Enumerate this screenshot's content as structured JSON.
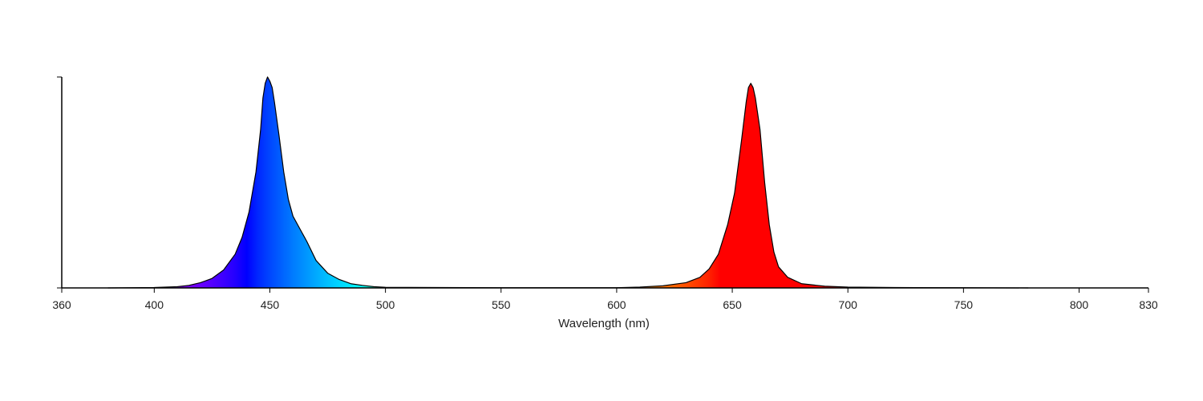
{
  "chart_data": {
    "type": "area",
    "title": "",
    "xlabel": "Wavelength (nm)",
    "ylabel": "",
    "xlim": [
      360,
      830
    ],
    "ylim": [
      0,
      1
    ],
    "grid": false,
    "legend": "none",
    "x_ticks": [
      360,
      400,
      450,
      500,
      550,
      600,
      650,
      700,
      750,
      800,
      830
    ],
    "y_ticks": [
      0,
      1
    ],
    "series": [
      {
        "color_mode": "spectral",
        "points": [
          [
            380,
            0.0
          ],
          [
            400,
            0.002
          ],
          [
            410,
            0.006
          ],
          [
            415,
            0.012
          ],
          [
            420,
            0.025
          ],
          [
            425,
            0.045
          ],
          [
            430,
            0.085
          ],
          [
            435,
            0.16
          ],
          [
            438,
            0.24
          ],
          [
            441,
            0.36
          ],
          [
            444,
            0.55
          ],
          [
            446,
            0.75
          ],
          [
            447,
            0.9
          ],
          [
            448,
            0.97
          ],
          [
            449,
            1.0
          ],
          [
            450,
            0.98
          ],
          [
            451,
            0.95
          ],
          [
            452,
            0.88
          ],
          [
            454,
            0.72
          ],
          [
            456,
            0.55
          ],
          [
            458,
            0.42
          ],
          [
            460,
            0.34
          ],
          [
            463,
            0.28
          ],
          [
            466,
            0.22
          ],
          [
            470,
            0.13
          ],
          [
            475,
            0.07
          ],
          [
            480,
            0.04
          ],
          [
            485,
            0.02
          ],
          [
            490,
            0.012
          ],
          [
            495,
            0.006
          ],
          [
            500,
            0.003
          ],
          [
            550,
            0.001
          ],
          [
            600,
            0.001
          ],
          [
            610,
            0.004
          ],
          [
            620,
            0.01
          ],
          [
            630,
            0.025
          ],
          [
            636,
            0.05
          ],
          [
            640,
            0.09
          ],
          [
            644,
            0.16
          ],
          [
            648,
            0.3
          ],
          [
            651,
            0.45
          ],
          [
            654,
            0.7
          ],
          [
            656,
            0.88
          ],
          [
            657,
            0.95
          ],
          [
            658,
            0.97
          ],
          [
            659,
            0.95
          ],
          [
            660,
            0.9
          ],
          [
            662,
            0.75
          ],
          [
            664,
            0.5
          ],
          [
            666,
            0.3
          ],
          [
            668,
            0.17
          ],
          [
            670,
            0.1
          ],
          [
            674,
            0.05
          ],
          [
            680,
            0.02
          ],
          [
            690,
            0.008
          ],
          [
            700,
            0.004
          ],
          [
            720,
            0.002
          ],
          [
            750,
            0.001
          ],
          [
            778,
            0.0
          ]
        ]
      }
    ]
  }
}
